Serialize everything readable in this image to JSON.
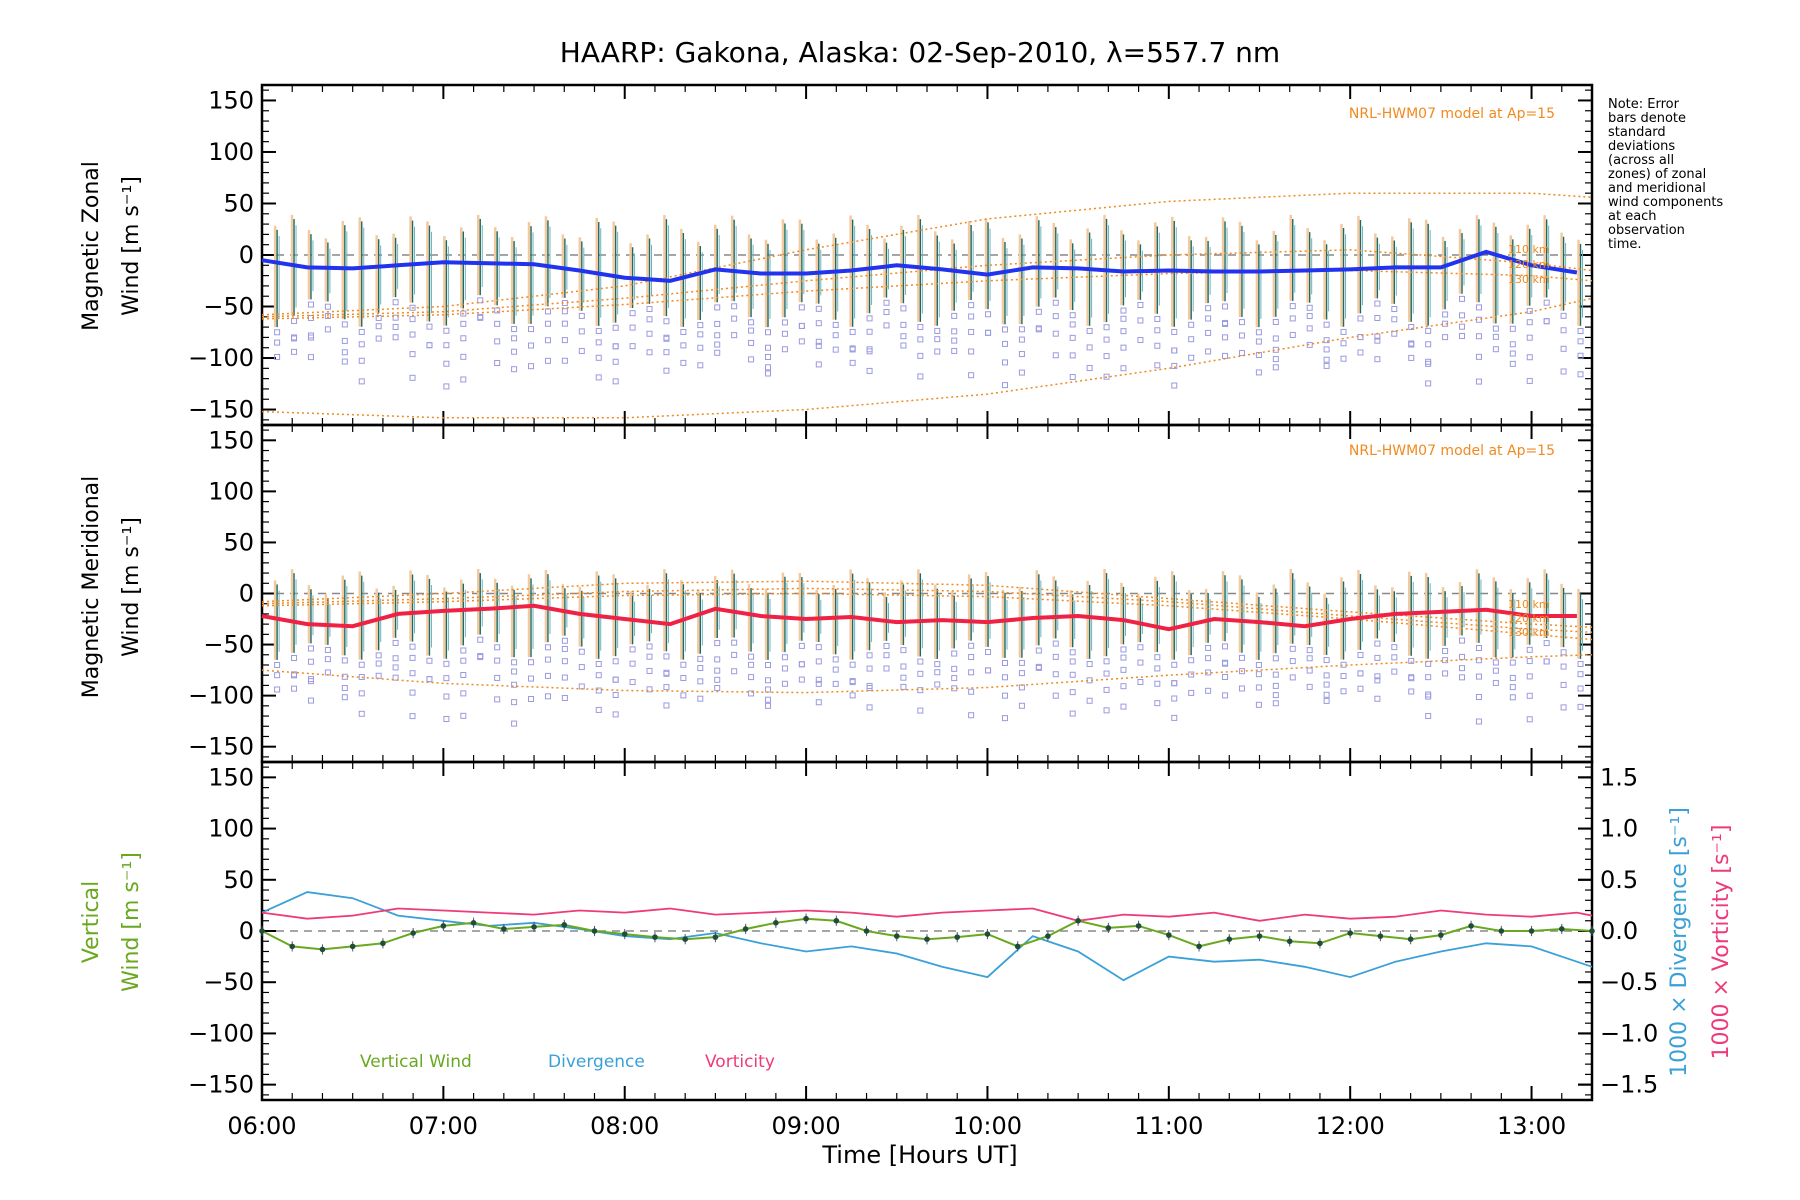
{
  "colors": {
    "zonal": "#2233ee",
    "meridional": "#ee2244",
    "vertical": "#6aa820",
    "divergence": "#3aa0d8",
    "vorticity": "#ee3a7a",
    "model": "#f08a20",
    "scatter": "#9a9ae0",
    "errbar": "#1e6b62"
  },
  "chart_data": [
    {
      "type": "line",
      "title": "HAARP: Gakona,  Alaska: 02-Sep-2010, λ=557.7 nm",
      "ylabel": [
        "Magnetic Zonal",
        "Wind [m s⁻¹]"
      ],
      "ylim": [
        -165,
        165
      ],
      "yticks": [
        "150",
        "100",
        "50",
        "0",
        "−50",
        "−100",
        "−150"
      ],
      "xlim": [
        "06:00",
        "13:20"
      ],
      "model_label": "NRL-HWM07 model at Ap=15",
      "model_alt_labels": [
        "110 km",
        "120 km",
        "130 km"
      ],
      "series": [
        {
          "name": "zonal",
          "x": [
            "06:00",
            "06:15",
            "06:30",
            "06:45",
            "07:00",
            "07:15",
            "07:30",
            "07:45",
            "08:00",
            "08:15",
            "08:30",
            "08:45",
            "09:00",
            "09:15",
            "09:30",
            "09:45",
            "10:00",
            "10:15",
            "10:30",
            "10:45",
            "11:00",
            "11:15",
            "11:30",
            "11:45",
            "12:00",
            "12:15",
            "12:30",
            "12:45",
            "13:00",
            "13:15"
          ],
          "values": [
            -5,
            -12,
            -13,
            -10,
            -7,
            -8,
            -9,
            -15,
            -22,
            -25,
            -14,
            -18,
            -18,
            -15,
            -10,
            -14,
            -19,
            -12,
            -13,
            -16,
            -15,
            -16,
            -16,
            -15,
            -14,
            -12,
            -12,
            3,
            -10,
            -17
          ]
        }
      ],
      "model_curves": {
        "x": [
          "06:00",
          "07:00",
          "08:00",
          "09:00",
          "10:00",
          "11:00",
          "12:00",
          "13:00",
          "13:20"
        ],
        "upper_110": [
          -58,
          -50,
          -30,
          5,
          35,
          52,
          60,
          60,
          56
        ],
        "upper_120": [
          -60,
          -55,
          -42,
          -25,
          -10,
          0,
          5,
          -8,
          -15
        ],
        "upper_130": [
          -62,
          -58,
          -48,
          -35,
          -25,
          -18,
          -15,
          -20,
          -25
        ],
        "lower": [
          -152,
          -158,
          -158,
          -150,
          -135,
          -110,
          -80,
          -55,
          -42
        ]
      },
      "errbar_range": [
        35,
        -70
      ]
    },
    {
      "type": "line",
      "ylabel": [
        "Magnetic Meridional",
        "Wind [m s⁻¹]"
      ],
      "ylim": [
        -165,
        165
      ],
      "yticks": [
        "150",
        "100",
        "50",
        "0",
        "−50",
        "−100",
        "−150"
      ],
      "xlim": [
        "06:00",
        "13:20"
      ],
      "model_label": "NRL-HWM07 model at Ap=15",
      "model_alt_labels": [
        "110 km",
        "120 km",
        "130 km"
      ],
      "series": [
        {
          "name": "meridional",
          "x": [
            "06:00",
            "06:15",
            "06:30",
            "06:45",
            "07:00",
            "07:15",
            "07:30",
            "07:45",
            "08:00",
            "08:15",
            "08:30",
            "08:45",
            "09:00",
            "09:15",
            "09:30",
            "09:45",
            "10:00",
            "10:15",
            "10:30",
            "10:45",
            "11:00",
            "11:15",
            "11:30",
            "11:45",
            "12:00",
            "12:15",
            "12:30",
            "12:45",
            "13:00",
            "13:15"
          ],
          "values": [
            -22,
            -30,
            -32,
            -20,
            -17,
            -15,
            -12,
            -20,
            -25,
            -30,
            -15,
            -22,
            -25,
            -23,
            -28,
            -26,
            -28,
            -24,
            -22,
            -26,
            -35,
            -25,
            -28,
            -32,
            -25,
            -20,
            -18,
            -16,
            -22,
            -22
          ]
        }
      ],
      "model_curves": {
        "x": [
          "06:00",
          "07:00",
          "08:00",
          "09:00",
          "10:00",
          "11:00",
          "12:00",
          "13:00",
          "13:20"
        ],
        "curve_110": [
          -8,
          0,
          10,
          12,
          8,
          -5,
          -18,
          -30,
          -33
        ],
        "curve_120": [
          -10,
          -5,
          2,
          5,
          2,
          -8,
          -22,
          -35,
          -38
        ],
        "curve_130": [
          -12,
          -8,
          -2,
          0,
          -3,
          -12,
          -25,
          -40,
          -45
        ],
        "lower": [
          -75,
          -88,
          -95,
          -97,
          -92,
          -80,
          -70,
          -62,
          -60
        ]
      },
      "errbar_range": [
        20,
        -65
      ]
    },
    {
      "type": "line",
      "ylabel": [
        "Vertical",
        "Wind [m s⁻¹]"
      ],
      "ylim": [
        -165,
        165
      ],
      "yticks": [
        "150",
        "100",
        "50",
        "0",
        "−50",
        "−100",
        "−150"
      ],
      "y2lim": [
        -1.65,
        1.65
      ],
      "y2ticks": [
        "1.5",
        "1.0",
        "0.5",
        "0.0",
        "−0.5",
        "−1.0",
        "−1.5"
      ],
      "y2label_divergence": "1000 × Divergence [s⁻¹]",
      "y2label_vorticity": "1000 × Vorticity [s⁻¹]",
      "xlabel": "Time [Hours UT]",
      "xticks": [
        "06:00",
        "07:00",
        "08:00",
        "09:00",
        "10:00",
        "11:00",
        "12:00",
        "13:00"
      ],
      "legend": [
        "Vertical Wind",
        "Divergence",
        "Vorticity"
      ],
      "series": [
        {
          "name": "Vertical Wind",
          "x": [
            "06:00",
            "06:10",
            "06:20",
            "06:30",
            "06:40",
            "06:50",
            "07:00",
            "07:10",
            "07:20",
            "07:30",
            "07:40",
            "07:50",
            "08:00",
            "08:10",
            "08:20",
            "08:30",
            "08:40",
            "08:50",
            "09:00",
            "09:10",
            "09:20",
            "09:30",
            "09:40",
            "09:50",
            "10:00",
            "10:10",
            "10:20",
            "10:30",
            "10:40",
            "10:50",
            "11:00",
            "11:10",
            "11:20",
            "11:30",
            "11:40",
            "11:50",
            "12:00",
            "12:10",
            "12:20",
            "12:30",
            "12:40",
            "12:50",
            "13:00",
            "13:10",
            "13:20"
          ],
          "values": [
            0,
            -15,
            -18,
            -15,
            -12,
            -2,
            5,
            8,
            2,
            4,
            6,
            0,
            -3,
            -6,
            -8,
            -6,
            2,
            8,
            12,
            10,
            0,
            -5,
            -8,
            -6,
            -3,
            -15,
            -5,
            10,
            3,
            5,
            -4,
            -15,
            -8,
            -5,
            -10,
            -12,
            -2,
            -5,
            -8,
            -4,
            5,
            0,
            0,
            2,
            0
          ]
        },
        {
          "name": "Divergence",
          "axis": "y2",
          "x": [
            "06:00",
            "06:15",
            "06:30",
            "06:45",
            "07:00",
            "07:15",
            "07:30",
            "07:45",
            "08:00",
            "08:15",
            "08:30",
            "08:45",
            "09:00",
            "09:15",
            "09:30",
            "09:45",
            "10:00",
            "10:15",
            "10:30",
            "10:45",
            "11:00",
            "11:15",
            "11:30",
            "11:45",
            "12:00",
            "12:15",
            "12:30",
            "12:45",
            "13:00",
            "13:15",
            "13:20"
          ],
          "values": [
            0.18,
            0.38,
            0.32,
            0.15,
            0.1,
            0.05,
            0.08,
            0.02,
            -0.05,
            -0.08,
            -0.02,
            -0.12,
            -0.2,
            -0.15,
            -0.22,
            -0.35,
            -0.45,
            -0.05,
            -0.2,
            -0.48,
            -0.25,
            -0.3,
            -0.28,
            -0.35,
            -0.45,
            -0.3,
            -0.2,
            -0.12,
            -0.15,
            -0.3,
            -0.35
          ]
        },
        {
          "name": "Vorticity",
          "axis": "y2",
          "x": [
            "06:00",
            "06:15",
            "06:30",
            "06:45",
            "07:00",
            "07:15",
            "07:30",
            "07:45",
            "08:00",
            "08:15",
            "08:30",
            "08:45",
            "09:00",
            "09:15",
            "09:30",
            "09:45",
            "10:00",
            "10:15",
            "10:30",
            "10:45",
            "11:00",
            "11:15",
            "11:30",
            "11:45",
            "12:00",
            "12:15",
            "12:30",
            "12:45",
            "13:00",
            "13:15",
            "13:20"
          ],
          "values": [
            0.18,
            0.12,
            0.15,
            0.22,
            0.2,
            0.18,
            0.16,
            0.2,
            0.18,
            0.22,
            0.16,
            0.18,
            0.2,
            0.18,
            0.14,
            0.18,
            0.2,
            0.22,
            0.1,
            0.16,
            0.14,
            0.18,
            0.1,
            0.16,
            0.12,
            0.14,
            0.2,
            0.16,
            0.14,
            0.18,
            0.15
          ]
        }
      ]
    }
  ],
  "note": "Note: Error bars denote standard deviations (across all zones) of zonal and meridional wind components at each observation time."
}
